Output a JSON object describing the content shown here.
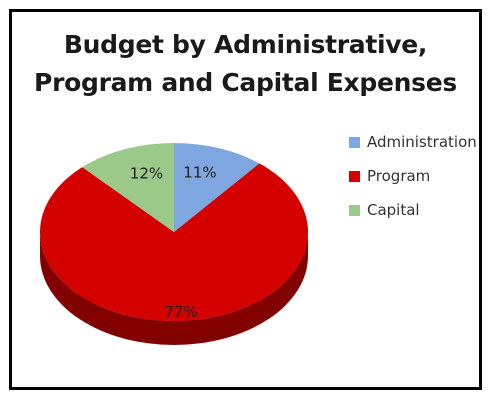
{
  "chart_data": {
    "type": "pie",
    "title_lines": [
      "Budget by Administrative,",
      "Program and Capital Expenses"
    ],
    "legend_position": "right",
    "three_d": true,
    "slices": [
      {
        "name": "Administration",
        "value": 11,
        "label": "11%",
        "color": "#7ea6e0"
      },
      {
        "name": "Program",
        "value": 77,
        "label": "77%",
        "color": "#d40000"
      },
      {
        "name": "Capital",
        "value": 12,
        "label": "12%",
        "color": "#9bc98a"
      }
    ]
  }
}
